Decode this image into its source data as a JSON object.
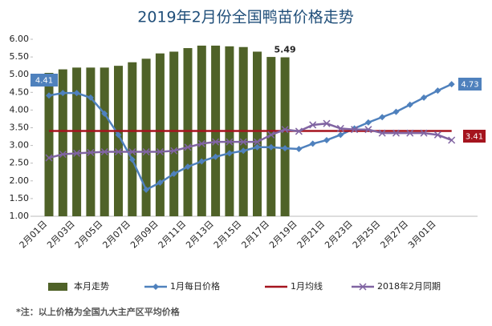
{
  "chart_data": {
    "type": "bar_line",
    "title": "2019年2月份全国鸭苗价格走势",
    "note": "*注：以上价格为全国九大主产区平均价格",
    "categories": [
      "2月01日",
      null,
      "2月03日",
      null,
      "2月05日",
      null,
      "2月07日",
      null,
      "2月09日",
      null,
      "2月11日",
      null,
      "2月13日",
      null,
      "2月15日",
      null,
      "2月17日",
      null,
      "2月19日",
      null,
      "2月21日",
      null,
      "2月23日",
      null,
      "2月25日",
      null,
      "2月27日",
      null,
      "3月01日",
      null
    ],
    "ylim": [
      1,
      6
    ],
    "yticks": [
      {
        "value": 1,
        "label": "1.00"
      },
      {
        "value": 1.5,
        "label": "1.50"
      },
      {
        "value": 2,
        "label": "2.00"
      },
      {
        "value": 2.5,
        "label": "2.50"
      },
      {
        "value": 3,
        "label": "3.00"
      },
      {
        "value": 3.5,
        "label": "3.50"
      },
      {
        "value": 4,
        "label": "4.00"
      },
      {
        "value": 4.5,
        "label": "4.50"
      },
      {
        "value": 5,
        "label": "5.00"
      },
      {
        "value": 5.5,
        "label": "5.50"
      },
      {
        "value": 6,
        "label": "6.00"
      }
    ],
    "grid": false,
    "series": [
      {
        "name": "本月走势",
        "kind": "bar",
        "color": "#4f6228",
        "values": [
          5.05,
          5.15,
          5.2,
          5.2,
          5.2,
          5.25,
          5.35,
          5.45,
          5.6,
          5.65,
          5.75,
          5.82,
          5.82,
          5.8,
          5.78,
          5.65,
          5.5,
          5.49,
          null,
          null,
          null,
          null,
          null,
          null,
          null,
          null,
          null,
          null,
          null,
          null
        ]
      },
      {
        "name": "1月每日价格",
        "kind": "line",
        "marker": "diamond",
        "color": "#4f81bd",
        "values": [
          4.41,
          4.48,
          4.48,
          4.35,
          3.9,
          3.3,
          2.6,
          1.75,
          1.95,
          2.2,
          2.4,
          2.55,
          2.68,
          2.78,
          2.85,
          2.95,
          2.95,
          2.92,
          2.9,
          3.05,
          3.15,
          3.3,
          3.48,
          3.65,
          3.8,
          3.95,
          4.15,
          4.35,
          4.55,
          4.73
        ]
      },
      {
        "name": "1月均线",
        "kind": "line",
        "marker": "none",
        "color": "#a5141e",
        "values": [
          3.41,
          3.41,
          3.41,
          3.41,
          3.41,
          3.41,
          3.41,
          3.41,
          3.41,
          3.41,
          3.41,
          3.41,
          3.41,
          3.41,
          3.41,
          3.41,
          3.41,
          3.41,
          3.41,
          3.41,
          3.41,
          3.41,
          3.41,
          3.41,
          3.41,
          3.41,
          3.41,
          3.41,
          3.41,
          3.41
        ]
      },
      {
        "name": "2018年2月同期",
        "kind": "line",
        "marker": "x",
        "color": "#8064a2",
        "values": [
          2.65,
          2.75,
          2.78,
          2.8,
          2.82,
          2.82,
          2.82,
          2.82,
          2.82,
          2.85,
          2.95,
          3.05,
          3.1,
          3.1,
          3.1,
          3.1,
          3.3,
          3.45,
          3.4,
          3.58,
          3.62,
          3.48,
          3.45,
          3.45,
          3.35,
          3.35,
          3.35,
          3.35,
          3.3,
          3.15
        ]
      }
    ]
  }
}
